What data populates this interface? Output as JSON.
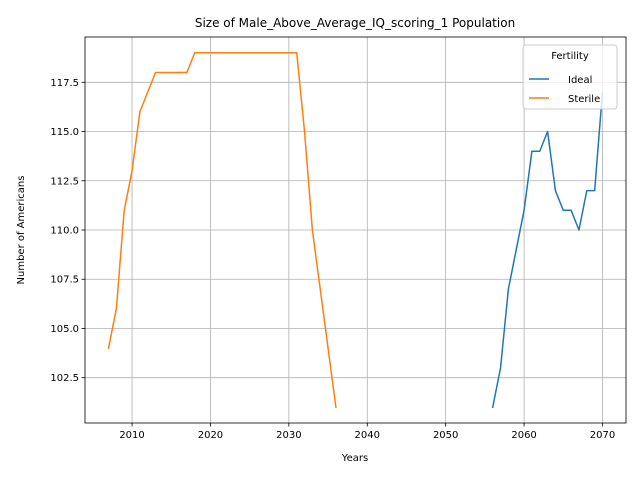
{
  "chart_data": {
    "type": "line",
    "title": "Size of Male_Above_Average_IQ_scoring_1 Population",
    "xlabel": "Years",
    "ylabel": "Number of Americans",
    "xlim": [
      2004,
      2073
    ],
    "ylim": [
      100.2,
      119.8
    ],
    "xticks": [
      2010,
      2020,
      2030,
      2040,
      2050,
      2060,
      2070
    ],
    "yticks": [
      102.5,
      105.0,
      107.5,
      110.0,
      112.5,
      115.0,
      117.5
    ],
    "ytick_labels": [
      "102.5",
      "105.0",
      "107.5",
      "110.0",
      "112.5",
      "115.0",
      "117.5"
    ],
    "grid": true,
    "legend": {
      "title": "Fertility",
      "placement": "top-right"
    },
    "series": [
      {
        "name": "Ideal",
        "color": "#1f77b4",
        "x": [
          2056,
          2057,
          2058,
          2059,
          2060,
          2061,
          2062,
          2063,
          2064,
          2065,
          2066,
          2067,
          2068,
          2069,
          2070
        ],
        "y": [
          101,
          103,
          107,
          109,
          111,
          114,
          114,
          115,
          112,
          111,
          111,
          110,
          112,
          112,
          117
        ]
      },
      {
        "name": "Sterile",
        "color": "#ff7f0e",
        "x": [
          2007,
          2008,
          2009,
          2010,
          2011,
          2012,
          2013,
          2014,
          2015,
          2016,
          2017,
          2018,
          2019,
          2020,
          2021,
          2022,
          2023,
          2024,
          2025,
          2026,
          2027,
          2028,
          2029,
          2030,
          2031,
          2032,
          2033,
          2034,
          2035,
          2036
        ],
        "y": [
          104,
          106,
          111,
          113,
          116,
          117,
          118,
          118,
          118,
          118,
          118,
          119,
          119,
          119,
          119,
          119,
          119,
          119,
          119,
          119,
          119,
          119,
          119,
          119,
          119,
          115,
          110,
          107,
          104,
          101
        ]
      }
    ]
  }
}
